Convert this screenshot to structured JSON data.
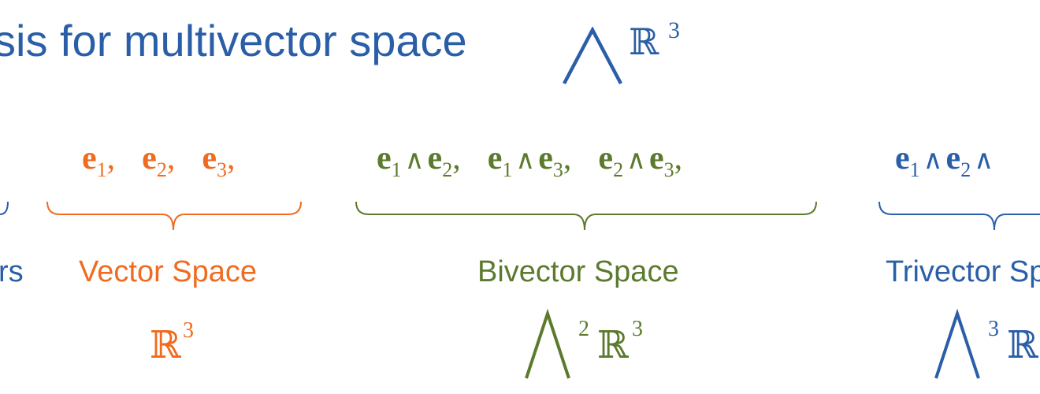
{
  "title": {
    "text": "sis for multivector space",
    "space_symbol": "ℝ",
    "space_exponent": "3"
  },
  "colors": {
    "blue": "#2a5fa8",
    "orange": "#f06b1f",
    "green": "#5c7a2e"
  },
  "groups": {
    "scalars": {
      "label": "rs"
    },
    "vector": {
      "basis": [
        {
          "e": "e",
          "sub": "1",
          "comma": ","
        },
        {
          "e": "e",
          "sub": "2",
          "comma": ","
        },
        {
          "e": "e",
          "sub": "3",
          "comma": ","
        }
      ],
      "label": "Vector Space",
      "symbol": "ℝ",
      "symbol_exponent": "3"
    },
    "bivector": {
      "basis": [
        {
          "e1": "e",
          "s1": "1",
          "wedge": "∧",
          "e2": "e",
          "s2": "2",
          "comma": ","
        },
        {
          "e1": "e",
          "s1": "1",
          "wedge": "∧",
          "e2": "e",
          "s2": "3",
          "comma": ","
        },
        {
          "e1": "e",
          "s1": "2",
          "wedge": "∧",
          "e2": "e",
          "s2": "3",
          "comma": ","
        }
      ],
      "label": "Bivector Space",
      "wedge_power": "2",
      "symbol": "ℝ",
      "symbol_exponent": "3"
    },
    "trivector": {
      "basis_partial": {
        "e1": "e",
        "s1": "1",
        "wedge1": "∧",
        "e2": "e",
        "s2": "2",
        "wedge2": "∧"
      },
      "label": "Trivector Sp",
      "wedge_power": "3",
      "symbol": "ℝ"
    }
  }
}
